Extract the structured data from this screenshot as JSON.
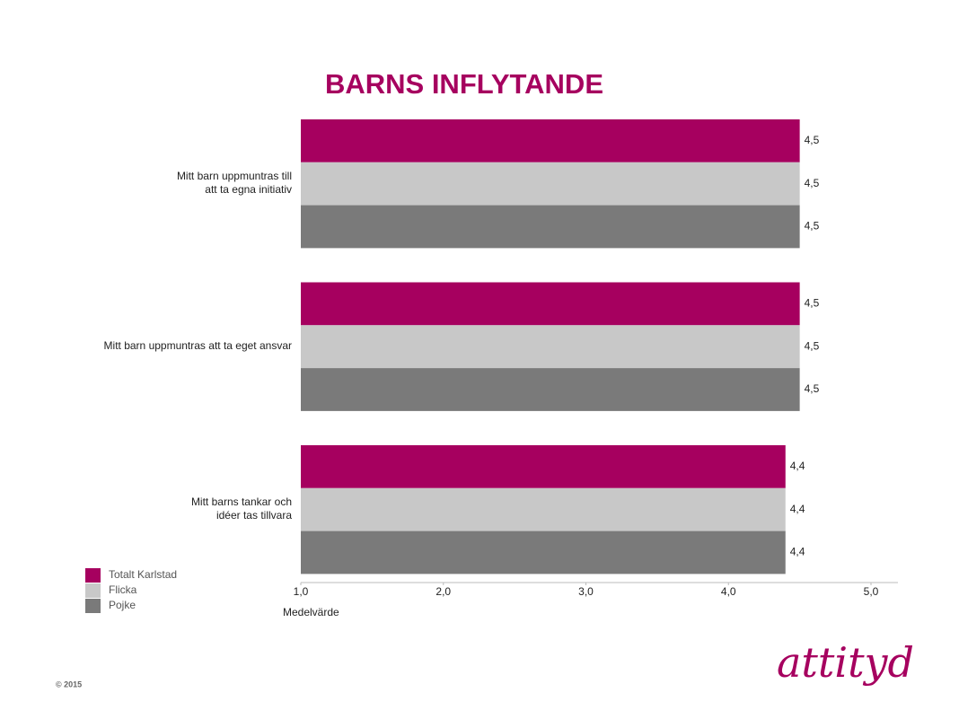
{
  "chart_data": {
    "type": "bar",
    "orientation": "horizontal",
    "title": "BARNS INFLYTANDE",
    "xlabel": "Medelvärde",
    "categories": [
      "Mitt barn uppmuntras till\natt ta egna initiativ",
      "Mitt barn uppmuntras att ta eget ansvar",
      "Mitt barns tankar och\nidéer tas tillvara"
    ],
    "series": [
      {
        "name": "Totalt Karlstad",
        "color": "#a6005f",
        "values": [
          4.5,
          4.5,
          4.4
        ],
        "value_labels": [
          "4,5",
          "4,5",
          "4,4"
        ]
      },
      {
        "name": "Flicka",
        "color": "#c8c8c8",
        "values": [
          4.5,
          4.5,
          4.4
        ],
        "value_labels": [
          "4,5",
          "4,5",
          "4,4"
        ]
      },
      {
        "name": "Pojke",
        "color": "#7a7a7a",
        "values": [
          4.5,
          4.5,
          4.4
        ],
        "value_labels": [
          "4,5",
          "4,5",
          "4,4"
        ]
      }
    ],
    "xlim": [
      1,
      5
    ],
    "xticks": [
      {
        "value": 1,
        "label": "1,0"
      },
      {
        "value": 2,
        "label": "2,0"
      },
      {
        "value": 3,
        "label": "3,0"
      },
      {
        "value": 4,
        "label": "4,0"
      },
      {
        "value": 5,
        "label": "5,0"
      }
    ],
    "grid": false,
    "legend": "bottom-left"
  },
  "footer": {
    "copyright": "© 2015",
    "logo": "attityd"
  }
}
